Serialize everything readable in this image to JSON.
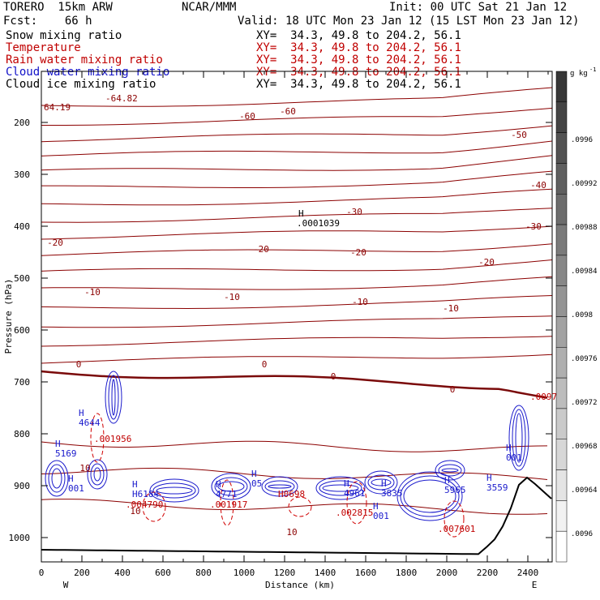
{
  "header": {
    "model": "TORERO  15km ARW",
    "org": "NCAR/MMM",
    "init": "Init: 00 UTC Sat 21 Jan 12",
    "fcst": "Fcst:    66 h",
    "valid": "Valid: 18 UTC Mon 23 Jan 12 (15 LST Mon 23 Jan 12)"
  },
  "fields": [
    {
      "name": "Snow mixing ratio",
      "xy": "XY=  34.3, 49.8 to 204.2, 56.1",
      "color": "#000000"
    },
    {
      "name": "Temperature",
      "xy": "XY=  34.3, 49.8 to 204.2, 56.1",
      "color": "#c00000"
    },
    {
      "name": "Rain water mixing ratio",
      "xy": "XY=  34.3, 49.8 to 204.2, 56.1",
      "color": "#c00000"
    },
    {
      "name": "Cloud water mixing ratio",
      "xy": "XY=  34.3, 49.8 to 204.2, 56.1",
      "color": "#1010c8"
    },
    {
      "name": "Cloud ice mixing ratio",
      "xy": "XY=  34.3, 49.8 to 204.2, 56.1",
      "color": "#000000"
    }
  ],
  "chart_data": {
    "type": "cross-section contour",
    "xlabel": "Distance (km)",
    "ylabel": "Pressure (hPa)",
    "xlim": [
      0,
      2520
    ],
    "ylim": [
      1045,
      100
    ],
    "x_ticks": [
      0,
      200,
      400,
      600,
      800,
      1000,
      1200,
      1400,
      1600,
      1800,
      2000,
      2200,
      2400
    ],
    "y_ticks": [
      200,
      300,
      400,
      500,
      600,
      700,
      800,
      900,
      1000
    ],
    "x_end_labels": {
      "left": "W",
      "right": "E"
    },
    "colorbar": {
      "unit": "g kg",
      "unit_exp": "-1",
      "ticks": [
        ".0996",
        ".00992",
        ".00988",
        ".00984",
        ".0098",
        ".00976",
        ".00972",
        ".00968",
        ".00964",
        ".0096"
      ],
      "levels": 16
    },
    "temperature_labels": [
      "-60",
      "-60",
      "-50",
      "-40",
      "-30",
      "-30",
      "-20",
      "-20",
      "-20",
      "-20",
      "-10",
      "-10",
      "-10",
      "-10",
      "0",
      "0",
      "0",
      "0",
      "10",
      "10",
      "10"
    ],
    "extrema": {
      "max_marker": "H",
      "min_marker": "L",
      "top_left_values": [
        "64.19",
        "-64.82"
      ],
      "upper_max": ".0001039",
      "cloud_values": [
        "5169",
        "4644",
        "001",
        "H6184",
        "4771",
        "05",
        "4961",
        "3835",
        "5965",
        "3559",
        "001",
        "001"
      ],
      "rain_values": [
        ".001956",
        ".004790",
        ".001917",
        "H0698",
        ".002815",
        ".007601",
        ".0097"
      ]
    }
  }
}
